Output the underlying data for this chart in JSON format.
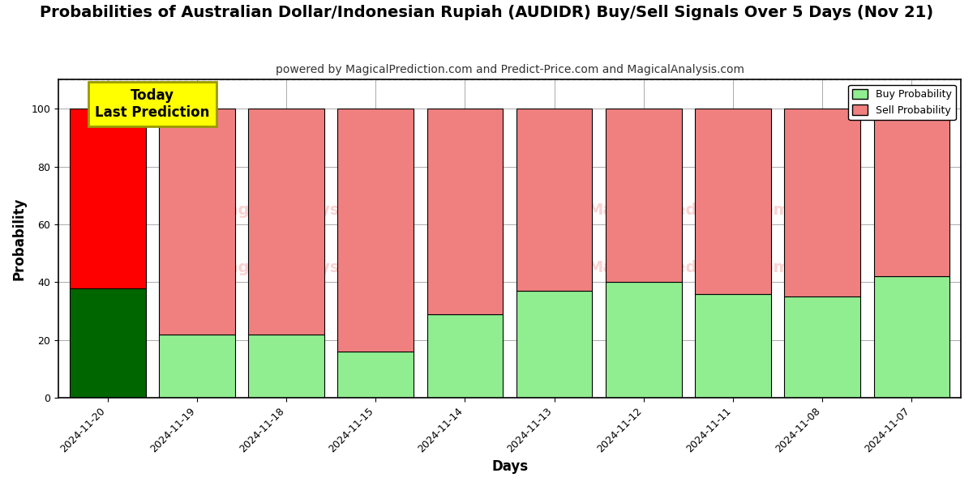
{
  "title": "Probabilities of Australian Dollar/Indonesian Rupiah (AUDIDR) Buy/Sell Signals Over 5 Days (Nov 21)",
  "subtitle": "powered by MagicalPrediction.com and Predict-Price.com and MagicalAnalysis.com",
  "xlabel": "Days",
  "ylabel": "Probability",
  "categories": [
    "2024-11-20",
    "2024-11-19",
    "2024-11-18",
    "2024-11-15",
    "2024-11-14",
    "2024-11-13",
    "2024-11-12",
    "2024-11-11",
    "2024-11-08",
    "2024-11-07"
  ],
  "buy_values": [
    38,
    22,
    22,
    16,
    29,
    37,
    40,
    36,
    35,
    42
  ],
  "sell_values": [
    62,
    78,
    78,
    84,
    71,
    63,
    60,
    64,
    65,
    58
  ],
  "buy_color_today": "#006600",
  "sell_color_today": "#ff0000",
  "buy_color_rest": "#90ee90",
  "sell_color_rest": "#f08080",
  "bar_edge_color": "#000000",
  "today_annotation_text": "Today\nLast Prediction",
  "today_annotation_bg": "#ffff00",
  "today_annotation_fg": "#000000",
  "legend_buy_label": "Buy Probability",
  "legend_sell_label": "Sell Probability",
  "ylim": [
    0,
    110
  ],
  "yticks": [
    0,
    20,
    40,
    60,
    80,
    100
  ],
  "dashed_line_y": 110,
  "watermark_color": "#f08080",
  "watermark_alpha": 0.35,
  "grid_color": "#aaaaaa",
  "background_color": "#ffffff",
  "title_fontsize": 14,
  "subtitle_fontsize": 10,
  "axis_label_fontsize": 12,
  "tick_fontsize": 9,
  "bar_width": 0.85
}
